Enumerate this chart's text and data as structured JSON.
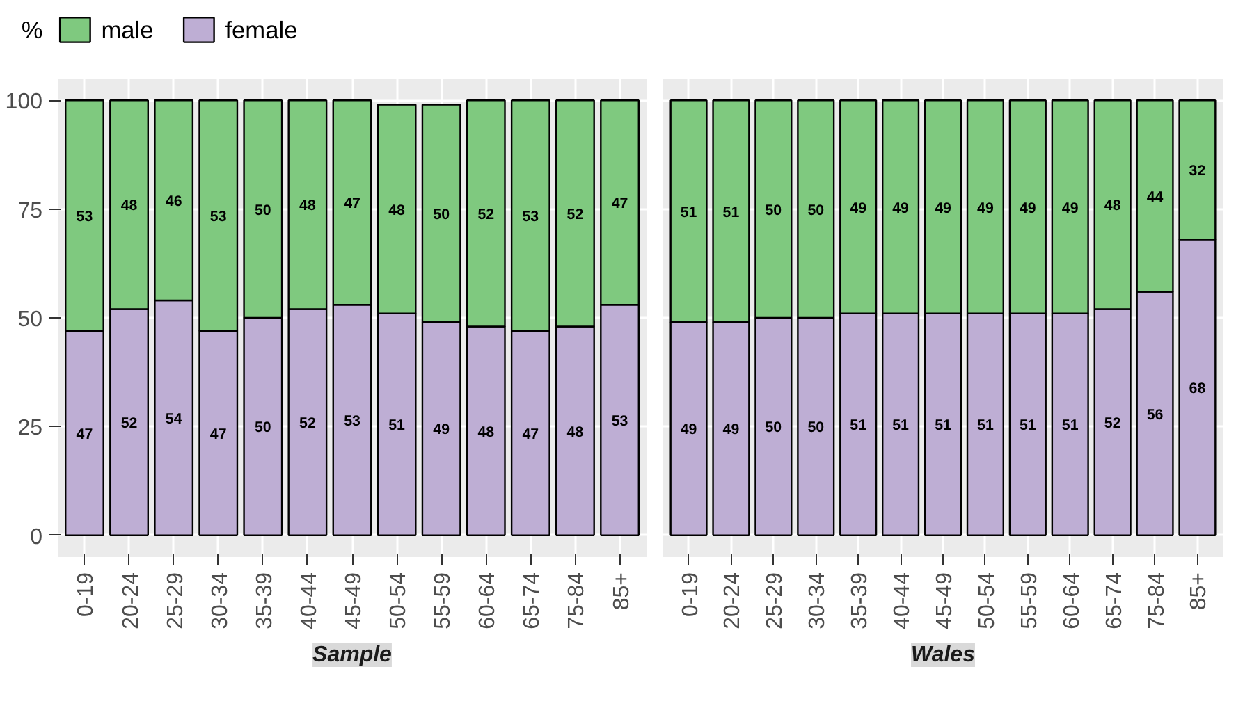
{
  "chart_data": [
    {
      "type": "bar",
      "title": "Sample",
      "stacked": true,
      "categories": [
        "0-19",
        "20-24",
        "25-29",
        "30-34",
        "35-39",
        "40-44",
        "45-49",
        "50-54",
        "55-59",
        "60-64",
        "65-74",
        "75-84",
        "85+"
      ],
      "series": [
        {
          "name": "female",
          "color": "#beaed4",
          "values": [
            47,
            52,
            54,
            47,
            50,
            52,
            53,
            51,
            49,
            48,
            47,
            48,
            53
          ]
        },
        {
          "name": "male",
          "color": "#7fc97f",
          "values": [
            53,
            48,
            46,
            53,
            50,
            48,
            47,
            48,
            50,
            52,
            53,
            52,
            47
          ]
        }
      ],
      "ylim": [
        -5,
        105
      ],
      "yticks": [
        0,
        25,
        50,
        75,
        100
      ],
      "grid": true,
      "data_labels": true,
      "legend": "top left",
      "legend_title": "%"
    },
    {
      "type": "bar",
      "title": "Wales",
      "stacked": true,
      "categories": [
        "0-19",
        "20-24",
        "25-29",
        "30-34",
        "35-39",
        "40-44",
        "45-49",
        "50-54",
        "55-59",
        "60-64",
        "65-74",
        "75-84",
        "85+"
      ],
      "series": [
        {
          "color": "#beaed4",
          "values": [
            49,
            49,
            50,
            50,
            51,
            51,
            51,
            51,
            51,
            51,
            52,
            56,
            68
          ]
        },
        {
          "color": "#7fc97f",
          "values": [
            51,
            51,
            50,
            50,
            49,
            49,
            49,
            49,
            49,
            49,
            48,
            44,
            32
          ]
        }
      ],
      "ylim": [
        -5,
        105
      ],
      "yticks": [
        0,
        25,
        50,
        75,
        100
      ],
      "grid": true,
      "data_labels": true,
      "tick_labels": "x"
    }
  ]
}
